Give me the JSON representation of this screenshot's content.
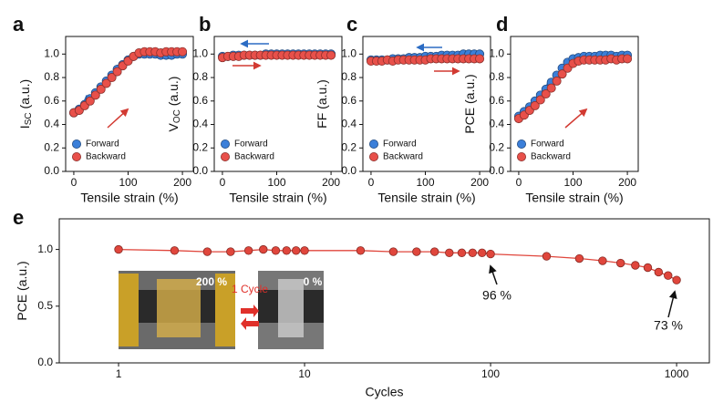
{
  "chart_data": [
    {
      "type": "scatter",
      "panel_label": "a",
      "xlabel": "Tensile strain (%)",
      "ylabel": [
        "I",
        "SC",
        " (a.u.)"
      ],
      "xlim": [
        -15,
        220
      ],
      "xticks": [
        0,
        100,
        200
      ],
      "ylim": [
        0,
        1.15
      ],
      "yticks": [
        {
          "value": 0,
          "label": "0.0"
        },
        0.2,
        0.4,
        0.6,
        0.8,
        {
          "value": 1,
          "label": "1.0"
        }
      ],
      "x": [
        0,
        10,
        20,
        30,
        40,
        50,
        60,
        70,
        80,
        90,
        100,
        110,
        120,
        130,
        140,
        150,
        160,
        170,
        180,
        190,
        200
      ],
      "series": [
        {
          "name": "Forward",
          "color": "#3b7fd9",
          "values": [
            0.5,
            0.53,
            0.57,
            0.62,
            0.67,
            0.72,
            0.77,
            0.82,
            0.87,
            0.91,
            0.95,
            0.98,
            1.0,
            1.0,
            1.0,
            1.0,
            0.99,
            0.99,
            0.99,
            1.0,
            1.0
          ]
        },
        {
          "name": "Backward",
          "color": "#e8504a",
          "values": [
            0.5,
            0.52,
            0.56,
            0.6,
            0.65,
            0.7,
            0.75,
            0.8,
            0.85,
            0.9,
            0.94,
            0.98,
            1.01,
            1.02,
            1.02,
            1.02,
            1.01,
            1.02,
            1.02,
            1.02,
            1.02
          ]
        }
      ]
    },
    {
      "type": "scatter",
      "panel_label": "b",
      "xlabel": "Tensile strain (%)",
      "ylabel": [
        "V",
        "OC",
        " (a.u.)"
      ],
      "xlim": [
        -15,
        220
      ],
      "xticks": [
        0,
        100,
        200
      ],
      "ylim": [
        0,
        1.15
      ],
      "yticks": [
        {
          "value": 0,
          "label": "0.0"
        },
        0.2,
        0.4,
        0.6,
        0.8,
        {
          "value": 1,
          "label": "1.0"
        }
      ],
      "x": [
        0,
        10,
        20,
        30,
        40,
        50,
        60,
        70,
        80,
        90,
        100,
        110,
        120,
        130,
        140,
        150,
        160,
        170,
        180,
        190,
        200
      ],
      "series": [
        {
          "name": "Forward",
          "color": "#3b7fd9",
          "values": [
            0.98,
            0.98,
            0.99,
            0.99,
            0.99,
            0.99,
            0.99,
            0.99,
            1.0,
            1.0,
            1.0,
            1.0,
            1.0,
            1.0,
            1.0,
            1.0,
            1.0,
            1.0,
            1.0,
            1.0,
            1.0
          ]
        },
        {
          "name": "Backward",
          "color": "#e8504a",
          "values": [
            0.97,
            0.98,
            0.98,
            0.98,
            0.99,
            0.99,
            0.99,
            0.99,
            0.99,
            0.99,
            0.99,
            0.99,
            0.99,
            0.99,
            0.99,
            0.99,
            0.99,
            0.99,
            0.99,
            0.99,
            0.99
          ]
        }
      ]
    },
    {
      "type": "scatter",
      "panel_label": "c",
      "xlabel": "Tensile strain (%)",
      "ylabel": [
        "FF (a.u.)"
      ],
      "xlim": [
        -15,
        220
      ],
      "xticks": [
        0,
        100,
        200
      ],
      "ylim": [
        0,
        1.15
      ],
      "yticks": [
        {
          "value": 0,
          "label": "0.0"
        },
        0.2,
        0.4,
        0.6,
        0.8,
        {
          "value": 1,
          "label": "1.0"
        }
      ],
      "x": [
        0,
        10,
        20,
        30,
        40,
        50,
        60,
        70,
        80,
        90,
        100,
        110,
        120,
        130,
        140,
        150,
        160,
        170,
        180,
        190,
        200
      ],
      "series": [
        {
          "name": "Forward",
          "color": "#3b7fd9",
          "values": [
            0.95,
            0.95,
            0.95,
            0.95,
            0.96,
            0.96,
            0.96,
            0.97,
            0.97,
            0.97,
            0.98,
            0.98,
            0.98,
            0.99,
            0.99,
            0.99,
            0.99,
            1.0,
            1.0,
            1.0,
            1.0
          ]
        },
        {
          "name": "Backward",
          "color": "#e8504a",
          "values": [
            0.94,
            0.94,
            0.94,
            0.95,
            0.94,
            0.95,
            0.95,
            0.95,
            0.95,
            0.95,
            0.95,
            0.96,
            0.96,
            0.96,
            0.96,
            0.96,
            0.96,
            0.96,
            0.96,
            0.96,
            0.96
          ]
        }
      ]
    },
    {
      "type": "scatter",
      "panel_label": "d",
      "xlabel": "Tensile strain (%)",
      "ylabel": [
        "PCE (a.u.)"
      ],
      "xlim": [
        -15,
        220
      ],
      "xticks": [
        0,
        100,
        200
      ],
      "ylim": [
        0,
        1.15
      ],
      "yticks": [
        {
          "value": 0,
          "label": "0.0"
        },
        0.2,
        0.4,
        0.6,
        0.8,
        {
          "value": 1,
          "label": "1.0"
        }
      ],
      "x": [
        0,
        10,
        20,
        30,
        40,
        50,
        60,
        70,
        80,
        90,
        100,
        110,
        120,
        130,
        140,
        150,
        160,
        170,
        180,
        190,
        200
      ],
      "series": [
        {
          "name": "Forward",
          "color": "#3b7fd9",
          "values": [
            0.47,
            0.51,
            0.55,
            0.6,
            0.65,
            0.7,
            0.76,
            0.82,
            0.88,
            0.93,
            0.96,
            0.97,
            0.98,
            0.98,
            0.98,
            0.99,
            0.99,
            0.99,
            0.98,
            0.99,
            0.99
          ]
        },
        {
          "name": "Backward",
          "color": "#e8504a",
          "values": [
            0.45,
            0.48,
            0.52,
            0.56,
            0.61,
            0.66,
            0.71,
            0.77,
            0.83,
            0.88,
            0.92,
            0.94,
            0.95,
            0.95,
            0.95,
            0.95,
            0.95,
            0.96,
            0.95,
            0.96,
            0.96
          ]
        }
      ]
    },
    {
      "type": "line",
      "panel_label": "e",
      "xlabel": "Cycles",
      "ylabel": [
        "PCE (a.u.)"
      ],
      "log_x": true,
      "xlim": [
        0.48,
        1500
      ],
      "xticks": [
        1,
        10,
        100,
        1000
      ],
      "ylim": [
        0,
        1.27
      ],
      "yticks": [
        {
          "value": 0,
          "label": "0.0"
        },
        0.5,
        {
          "value": 1,
          "label": "1.0"
        }
      ],
      "x": [
        1,
        2,
        3,
        4,
        5,
        6,
        7,
        8,
        9,
        10,
        20,
        30,
        40,
        50,
        60,
        70,
        80,
        90,
        100,
        200,
        300,
        400,
        500,
        600,
        700,
        800,
        900,
        1000
      ],
      "color": "#e0463c",
      "values": [
        1.0,
        0.99,
        0.98,
        0.98,
        0.99,
        1.0,
        0.99,
        0.99,
        0.99,
        0.99,
        0.99,
        0.98,
        0.98,
        0.98,
        0.97,
        0.97,
        0.97,
        0.97,
        0.96,
        0.94,
        0.92,
        0.9,
        0.88,
        0.86,
        0.84,
        0.8,
        0.77,
        0.73
      ],
      "annotations": [
        "96 %",
        "73 %"
      ],
      "inset_labels": [
        "200 %",
        "1 Cycle",
        "0 %"
      ]
    }
  ]
}
